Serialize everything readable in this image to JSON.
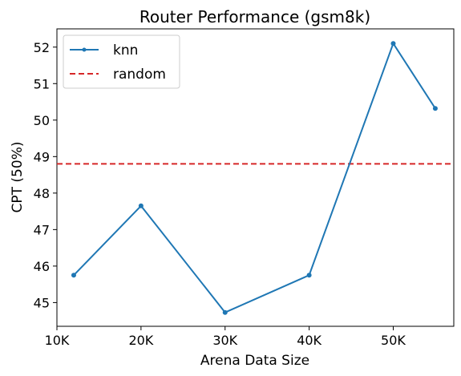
{
  "chart_data": {
    "type": "line",
    "title": "Router Performance (gsm8k)",
    "xlabel": "Arena Data Size",
    "ylabel": "CPT (50%)",
    "xlim": [
      10000,
      57200
    ],
    "ylim": [
      44.35,
      52.5
    ],
    "x_ticks": [
      10000,
      20000,
      30000,
      40000,
      50000
    ],
    "x_tick_labels": [
      "10K",
      "20K",
      "30K",
      "40K",
      "50K"
    ],
    "y_ticks": [
      45,
      46,
      47,
      48,
      49,
      50,
      51,
      52
    ],
    "y_tick_labels": [
      "45",
      "46",
      "47",
      "48",
      "49",
      "50",
      "51",
      "52"
    ],
    "grid": false,
    "legend_position": "upper-left",
    "series": [
      {
        "name": "knn",
        "style": "solid-with-markers",
        "color": "#1f77b4",
        "x": [
          12000,
          20000,
          30000,
          40000,
          50000,
          55000
        ],
        "y": [
          45.75,
          47.65,
          44.73,
          45.75,
          52.1,
          50.32
        ]
      },
      {
        "name": "random",
        "style": "dashed-horizontal",
        "color": "#d62728",
        "y_value": 48.8
      }
    ]
  }
}
